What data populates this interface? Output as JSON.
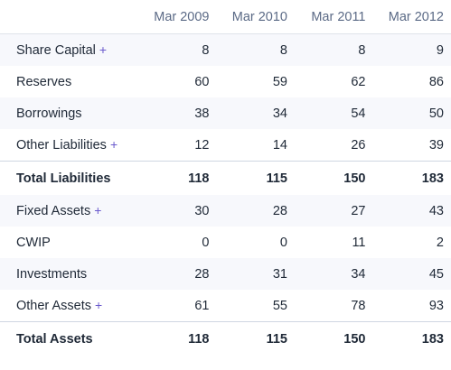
{
  "headers": [
    "Mar 2009",
    "Mar 2010",
    "Mar 2011",
    "Mar 2012"
  ],
  "plus_icon": "+",
  "rows": [
    {
      "label": "Share Capital",
      "expandable": true,
      "values": [
        "8",
        "8",
        "8",
        "9"
      ]
    },
    {
      "label": "Reserves",
      "expandable": false,
      "values": [
        "60",
        "59",
        "62",
        "86"
      ]
    },
    {
      "label": "Borrowings",
      "expandable": false,
      "values": [
        "38",
        "34",
        "54",
        "50"
      ]
    },
    {
      "label": "Other Liabilities",
      "expandable": true,
      "values": [
        "12",
        "14",
        "26",
        "39"
      ]
    },
    {
      "label": "Total Liabilities",
      "total": true,
      "values": [
        "118",
        "115",
        "150",
        "183"
      ]
    },
    {
      "label": "Fixed Assets",
      "expandable": true,
      "values": [
        "30",
        "28",
        "27",
        "43"
      ]
    },
    {
      "label": "CWIP",
      "expandable": false,
      "values": [
        "0",
        "0",
        "11",
        "2"
      ]
    },
    {
      "label": "Investments",
      "expandable": false,
      "values": [
        "28",
        "31",
        "34",
        "45"
      ]
    },
    {
      "label": "Other Assets",
      "expandable": true,
      "values": [
        "61",
        "55",
        "78",
        "93"
      ]
    },
    {
      "label": "Total Assets",
      "total": true,
      "values": [
        "118",
        "115",
        "150",
        "183"
      ]
    }
  ]
}
